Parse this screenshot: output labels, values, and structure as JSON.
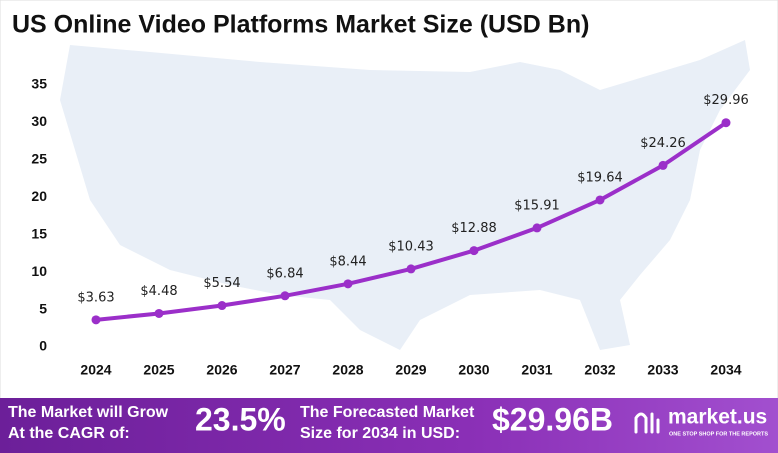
{
  "chart_data": {
    "type": "line",
    "title": "US Online Video Platforms Market Size (USD Bn)",
    "categories": [
      "2024",
      "2025",
      "2026",
      "2027",
      "2028",
      "2029",
      "2030",
      "2031",
      "2032",
      "2033",
      "2034"
    ],
    "values": [
      3.63,
      4.48,
      5.54,
      6.84,
      8.44,
      10.43,
      12.88,
      15.91,
      19.64,
      24.26,
      29.96
    ],
    "value_labels": [
      "$3.63",
      "$4.48",
      "$5.54",
      "$6.84",
      "$8.44",
      "$10.43",
      "$12.88",
      "$15.91",
      "$19.64",
      "$24.26",
      "$29.96"
    ],
    "color": "#9b2fc9",
    "ylim": [
      0,
      35
    ],
    "yticks": [
      0,
      5,
      10,
      15,
      20,
      25,
      30,
      35
    ]
  },
  "footer": {
    "cagr_label": [
      "The Market will Grow",
      "At the CAGR of:"
    ],
    "cagr": "23.5%",
    "forecast_label": [
      "The Forecasted Market",
      "Size for 2034 in USD:"
    ],
    "forecast": "$29.96B",
    "brand": "market.us",
    "tagline": "ONE STOP SHOP FOR THE REPORTS"
  }
}
